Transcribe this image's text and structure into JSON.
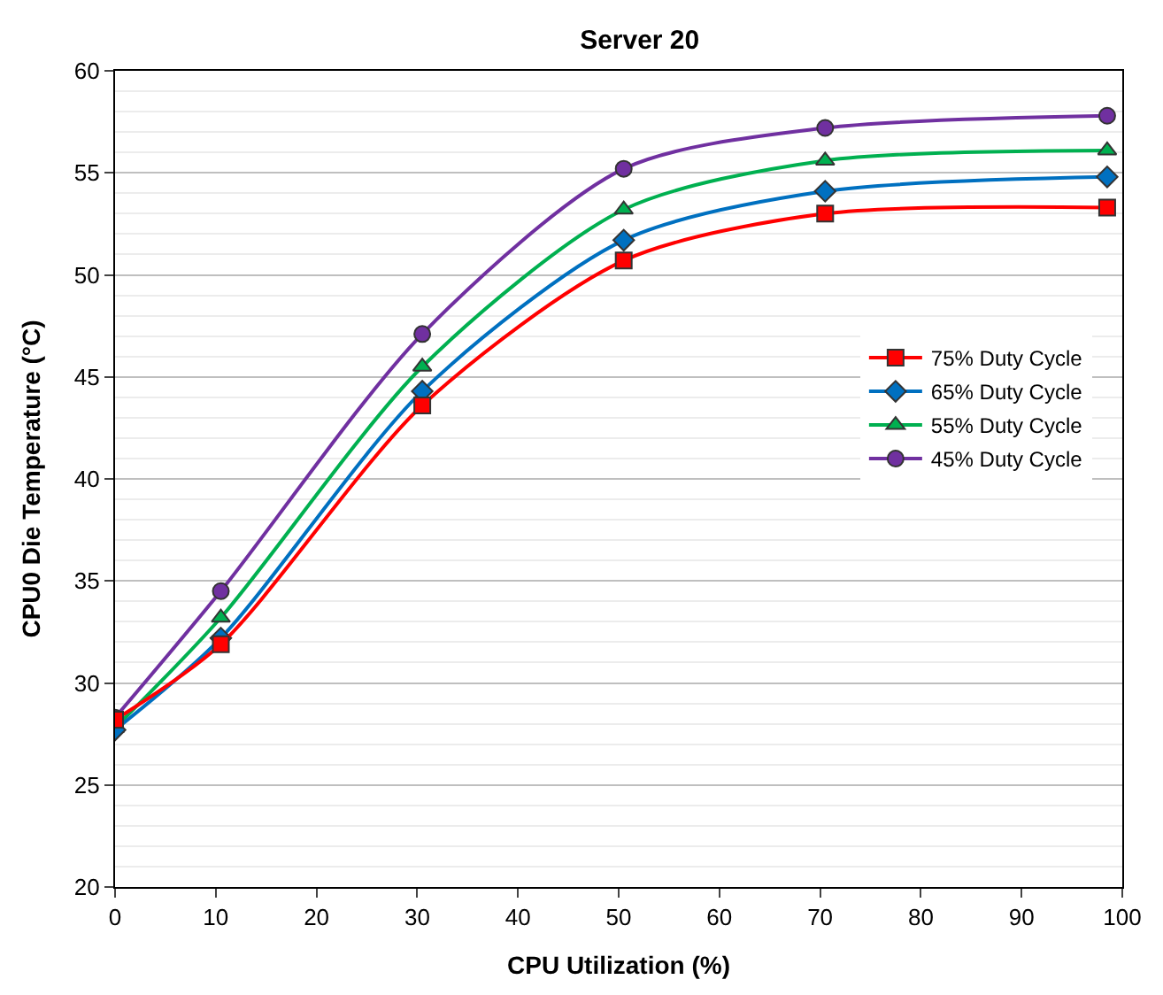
{
  "chart_data": {
    "type": "line",
    "title": "Server 20",
    "xlabel": "CPU Utilization (%)",
    "ylabel": "CPU0 Die Temperature (°C)",
    "x": [
      0,
      10.5,
      30.5,
      50.5,
      70.5,
      98.5
    ],
    "xlim": [
      0,
      100
    ],
    "xticks": [
      0,
      10,
      20,
      30,
      40,
      50,
      60,
      70,
      80,
      90,
      100
    ],
    "ylim": [
      20,
      60
    ],
    "yticks": [
      20,
      25,
      30,
      35,
      40,
      45,
      50,
      55,
      60
    ],
    "grid": "y",
    "legend": "right",
    "line_style": "solid",
    "series": [
      {
        "name": "75% Duty Cycle",
        "color": "#ff0000",
        "marker": "square",
        "values": [
          28.2,
          31.9,
          43.6,
          50.7,
          53.0,
          53.3
        ]
      },
      {
        "name": "65% Duty Cycle",
        "color": "#0070c0",
        "marker": "diamond",
        "values": [
          27.7,
          32.2,
          44.3,
          51.7,
          54.1,
          54.8
        ]
      },
      {
        "name": "55% Duty Cycle",
        "color": "#00b050",
        "marker": "triangle",
        "values": [
          27.8,
          33.2,
          45.5,
          53.2,
          55.6,
          56.1
        ]
      },
      {
        "name": "45% Duty Cycle",
        "color": "#7030a0",
        "marker": "circle",
        "values": [
          28.3,
          34.5,
          47.1,
          55.2,
          57.2,
          57.8
        ]
      }
    ]
  }
}
